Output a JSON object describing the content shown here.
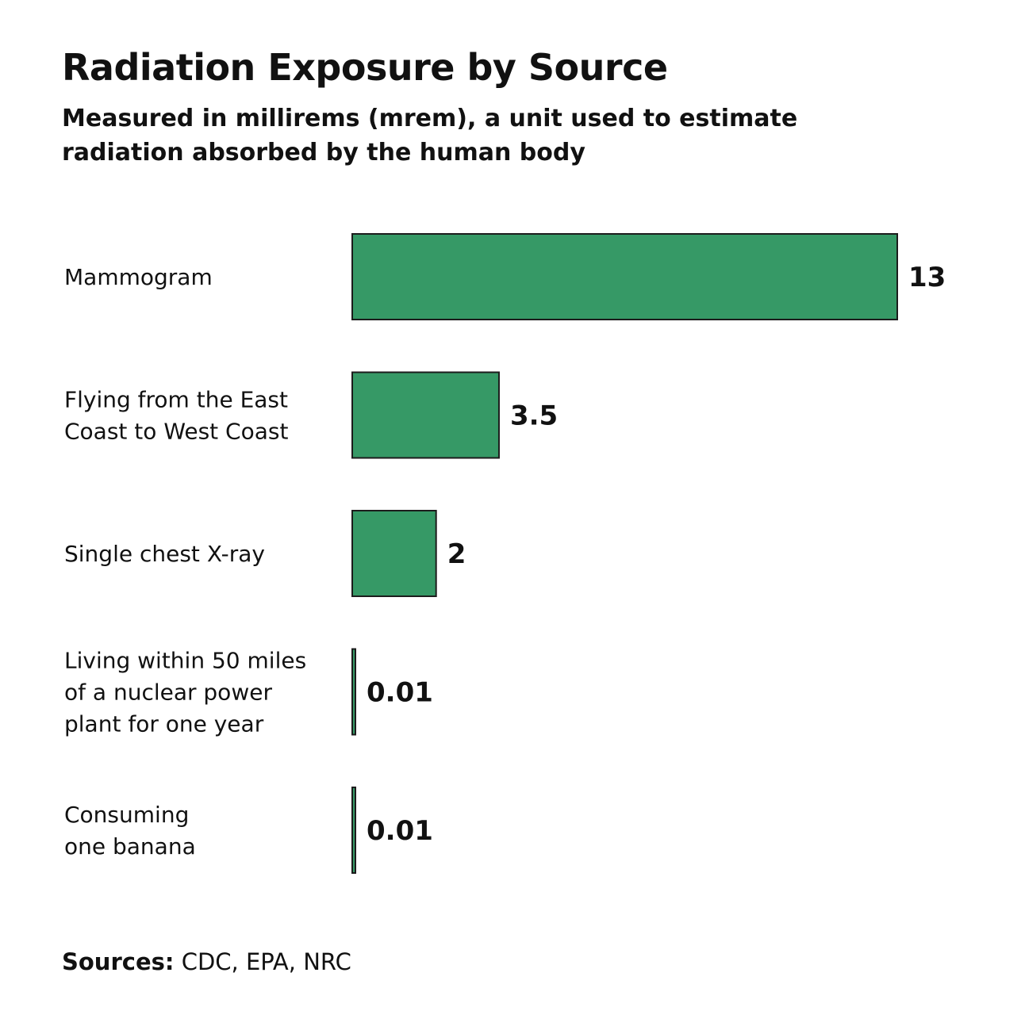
{
  "chart_data": {
    "type": "bar",
    "orientation": "horizontal",
    "title": "Radiation Exposure by Source",
    "subtitle": "Measured in millirems (mrem), a unit used to estimate radiation absorbed by the human body",
    "categories": [
      [
        "Mammogram"
      ],
      [
        "Flying from the East",
        "Coast to West Coast"
      ],
      [
        "Single chest X-ray"
      ],
      [
        "Living within 50 miles",
        "of a nuclear power",
        "plant for one year"
      ],
      [
        "Consuming",
        "one banana"
      ]
    ],
    "values": [
      13,
      3.5,
      2,
      0.01,
      0.01
    ],
    "value_labels": [
      "13",
      "3.5",
      "2",
      "0.01",
      "0.01"
    ],
    "xlim": [
      0,
      13
    ],
    "grid": false,
    "colors": {
      "bar_fill": "#369966",
      "bar_stroke": "#1c1c1c"
    }
  },
  "footer": {
    "sources_label": "Sources:",
    "sources_text": " CDC, EPA, NRC"
  }
}
